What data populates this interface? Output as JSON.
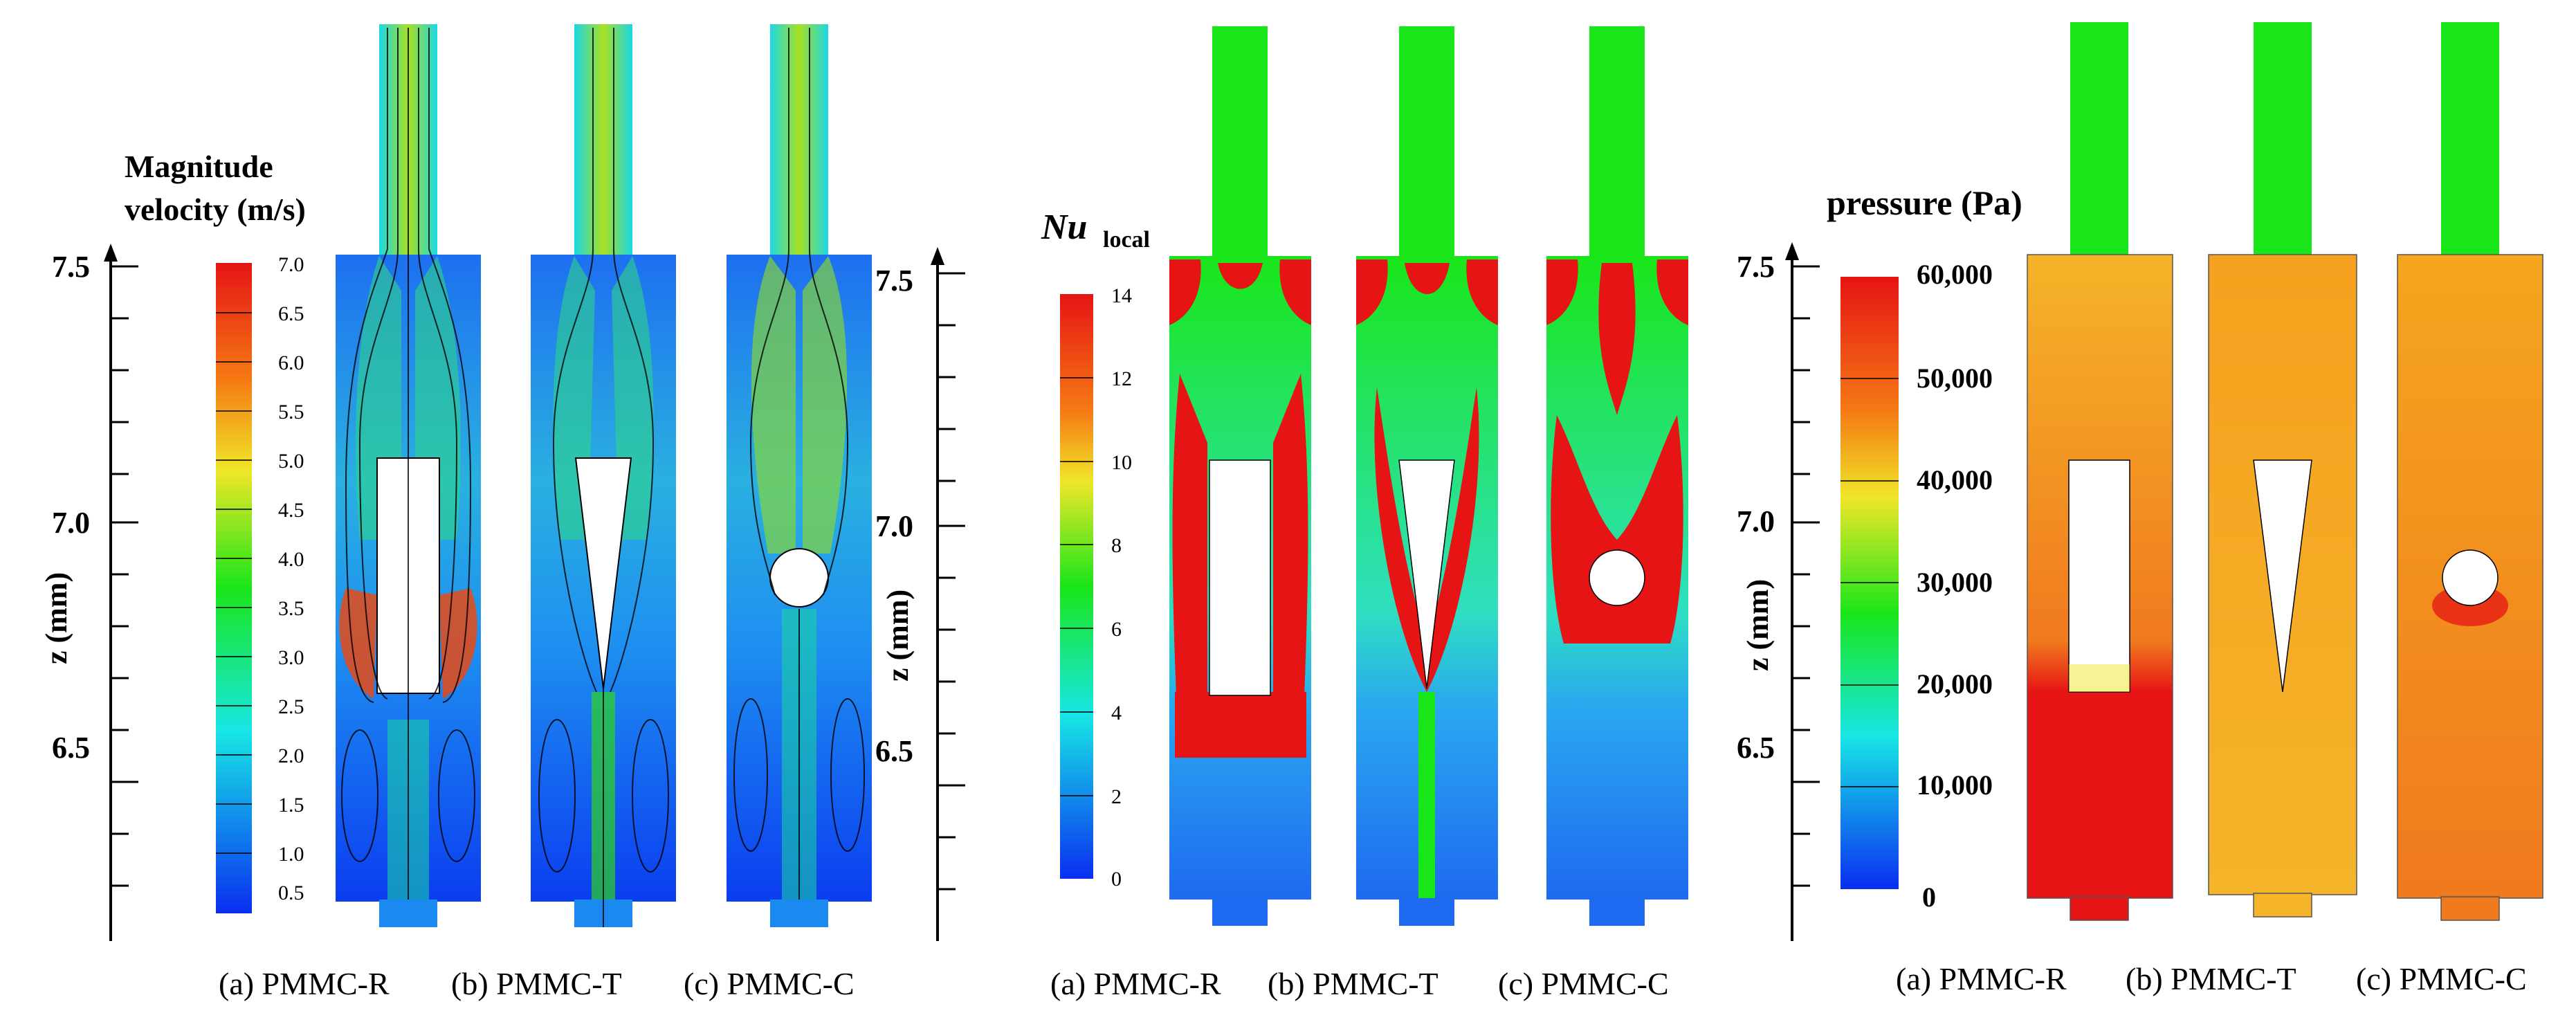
{
  "colors": {
    "blue": "#0a2ef0",
    "cyan": "#18e6e6",
    "green": "#19e619",
    "yellow": "#f0e628",
    "orange": "#f57a14",
    "red": "#e61414",
    "pressure_high": "#f0a51e",
    "pressure_mid": "#f0b428"
  },
  "panels": [
    {
      "title_lines": [
        "Magnitude",
        "velocity (m/s)"
      ],
      "colorbar_ticks": [
        "7.0",
        "6.5",
        "6.0",
        "5.5",
        "5.0",
        "4.5",
        "4.0",
        "3.5",
        "3.0",
        "2.5",
        "2.0",
        "1.5",
        "1.0",
        "0.5"
      ],
      "axis_ticks": [
        "7.5",
        "7.0",
        "6.5"
      ],
      "axis_label": "z (mm)",
      "captions": [
        "(a) PMMC-R",
        "(b) PMMC-T",
        "(c) PMMC-C"
      ]
    },
    {
      "title_main": "Nu",
      "title_sub": "local",
      "colorbar_ticks": [
        "14",
        "12",
        "10",
        "8",
        "6",
        "4",
        "2",
        "0"
      ],
      "axis_ticks": [
        "7.5",
        "7.0",
        "6.5"
      ],
      "axis_label": "z (mm)",
      "captions": [
        "(a) PMMC-R",
        "(b) PMMC-T",
        "(c) PMMC-C"
      ]
    },
    {
      "title": "pressure (Pa)",
      "colorbar_ticks": [
        "60,000",
        "50,000",
        "40,000",
        "30,000",
        "20,000",
        "10,000",
        "0"
      ],
      "axis_ticks": [
        "7.5",
        "7.0",
        "6.5"
      ],
      "axis_label": "z (mm)",
      "captions": [
        "(a) PMMC-R",
        "(b) PMMC-T",
        "(c) PMMC-C"
      ]
    }
  ]
}
